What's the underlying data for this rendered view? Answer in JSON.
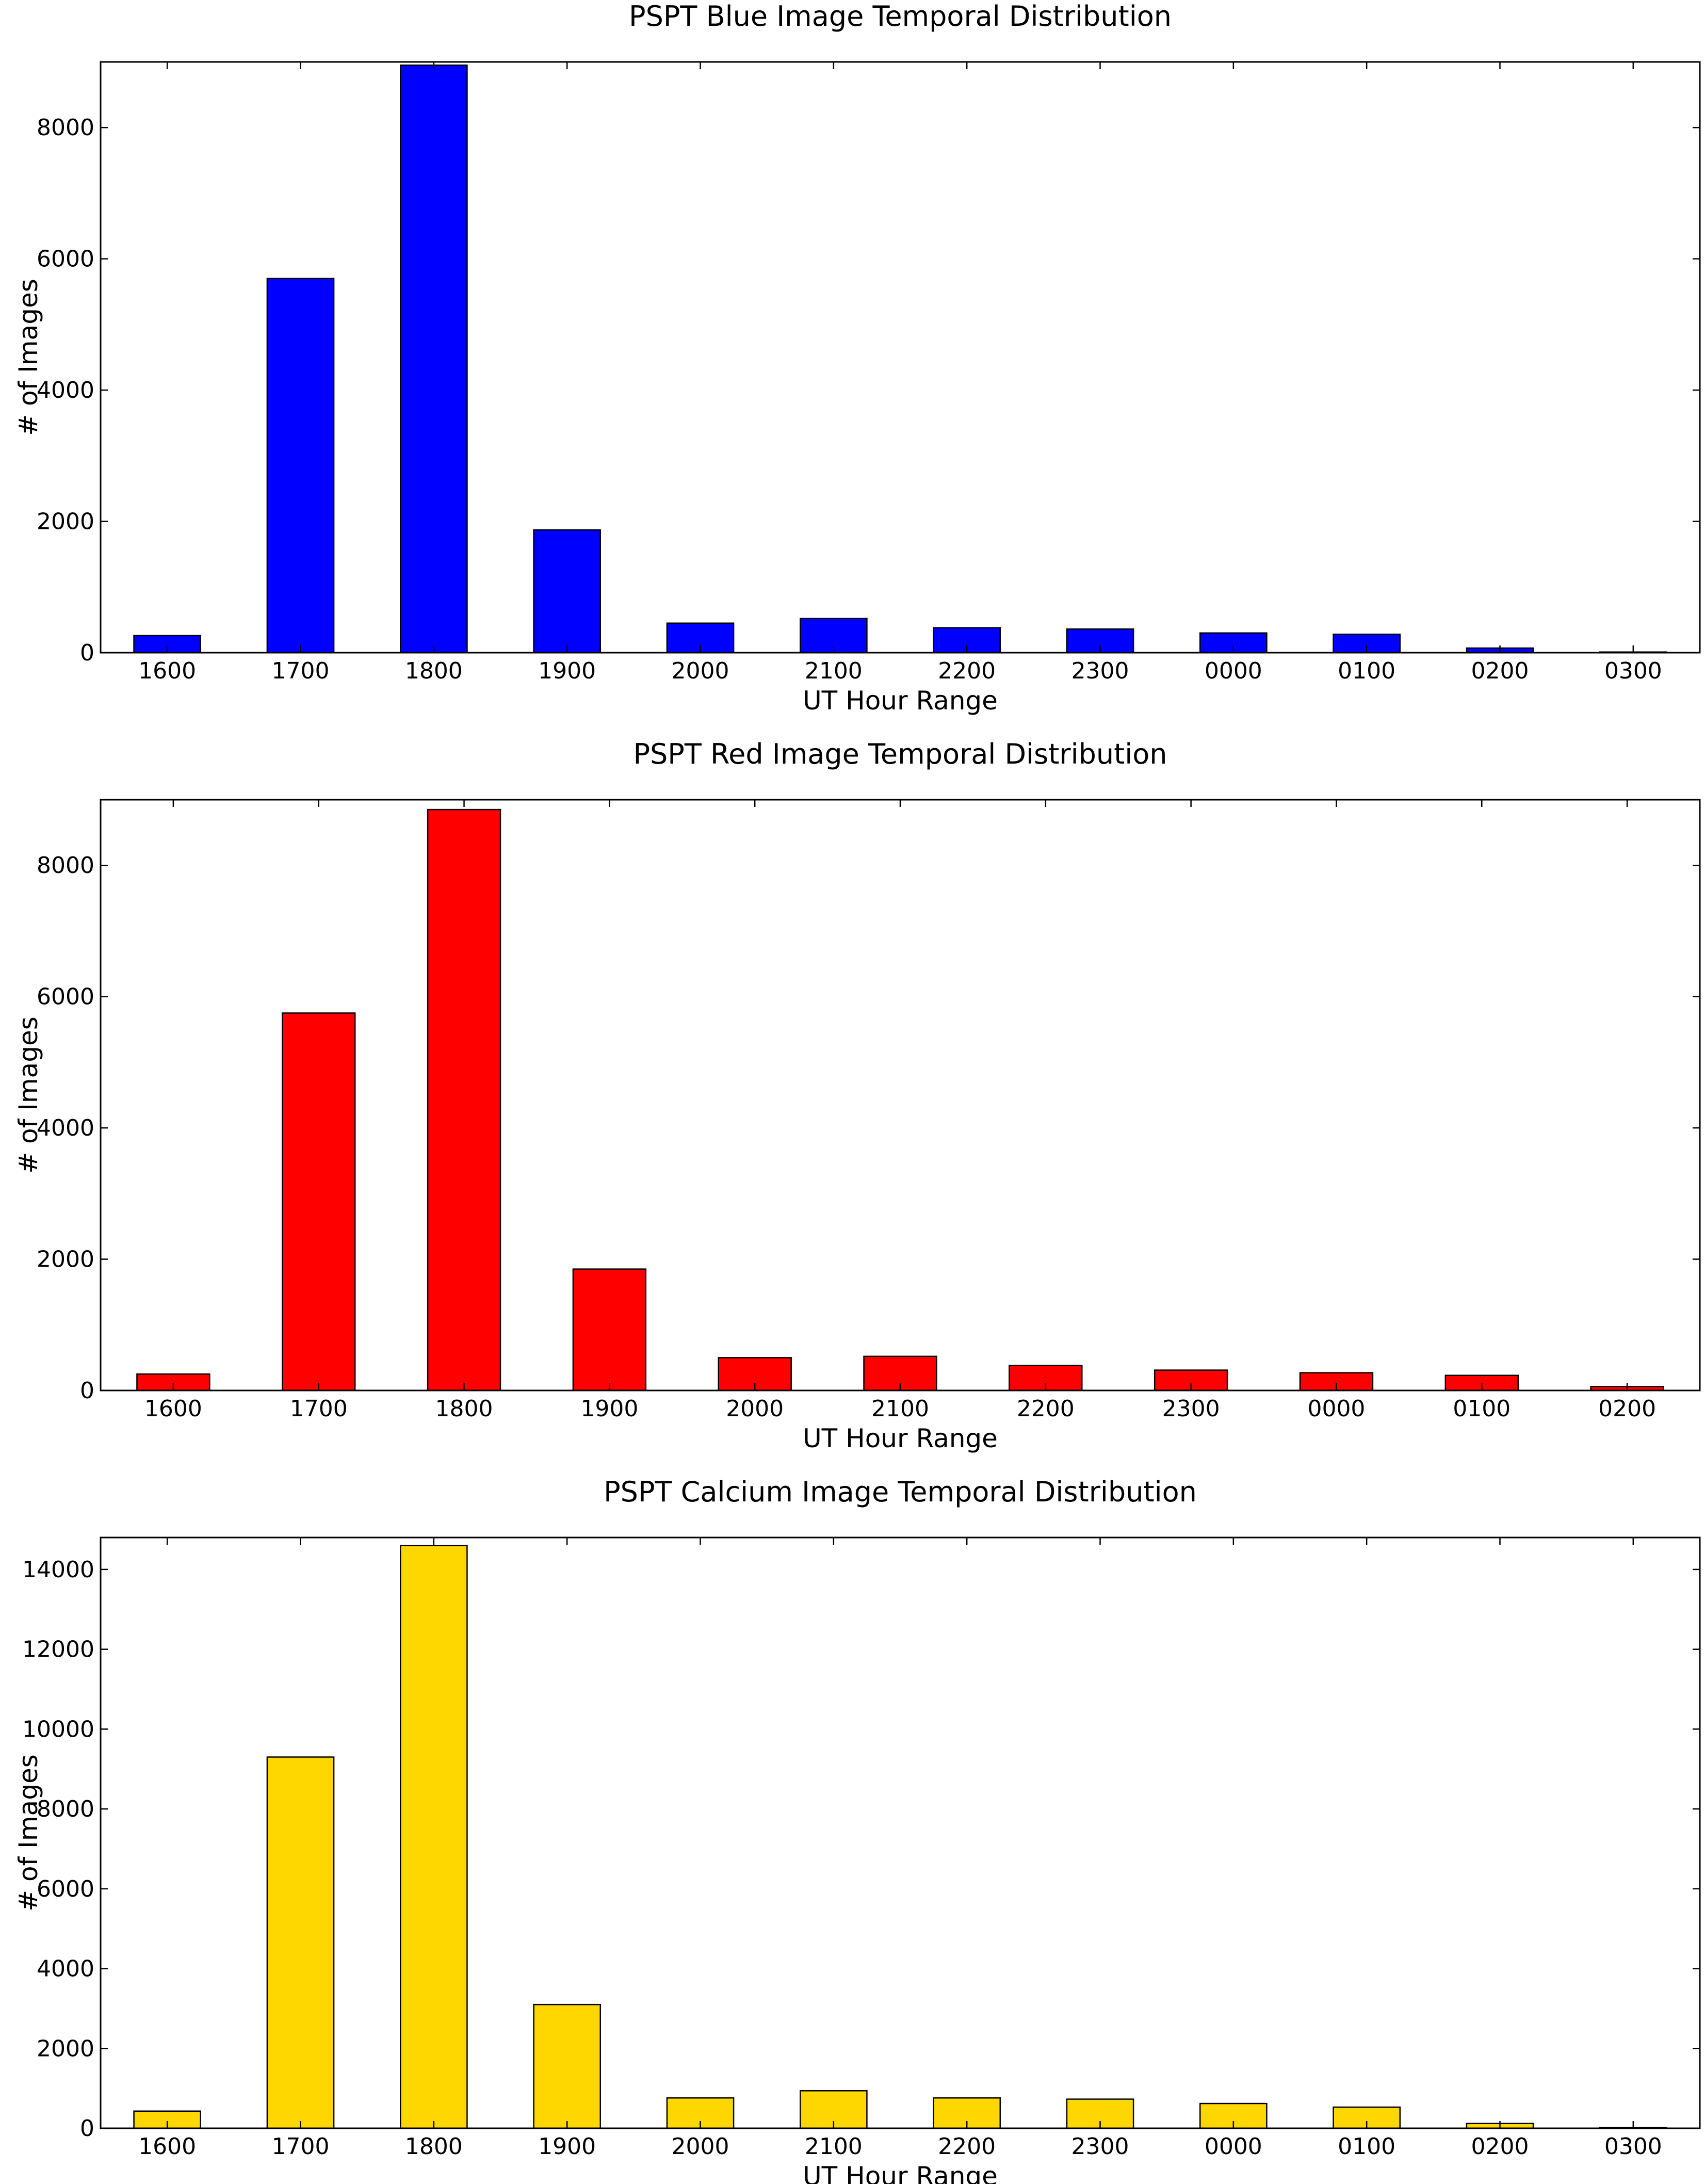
{
  "chart_data": [
    {
      "type": "bar",
      "title": "PSPT Blue Image Temporal Distribution",
      "xlabel": "UT Hour Range",
      "ylabel": "# of Images",
      "categories": [
        "1600",
        "1700",
        "1800",
        "1900",
        "2000",
        "2100",
        "2200",
        "2300",
        "0000",
        "0100",
        "0200",
        "0300"
      ],
      "values": [
        260,
        5700,
        8950,
        1870,
        450,
        520,
        380,
        360,
        300,
        280,
        70,
        10
      ],
      "color": "#0000ff",
      "ylim": [
        0,
        9000
      ],
      "yticks": [
        0,
        2000,
        4000,
        6000,
        8000
      ],
      "grid": false
    },
    {
      "type": "bar",
      "title": "PSPT Red Image Temporal Distribution",
      "xlabel": "UT Hour Range",
      "ylabel": "# of Images",
      "categories": [
        "1600",
        "1700",
        "1800",
        "1900",
        "2000",
        "2100",
        "2200",
        "2300",
        "0000",
        "0100",
        "0200"
      ],
      "values": [
        250,
        5750,
        8850,
        1850,
        500,
        520,
        380,
        310,
        270,
        230,
        60
      ],
      "color": "#ff0000",
      "ylim": [
        0,
        9000
      ],
      "yticks": [
        0,
        2000,
        4000,
        6000,
        8000
      ],
      "grid": false
    },
    {
      "type": "bar",
      "title": "PSPT Calcium Image Temporal Distribution",
      "xlabel": "UT Hour Range",
      "ylabel": "# of Images",
      "categories": [
        "1600",
        "1700",
        "1800",
        "1900",
        "2000",
        "2100",
        "2200",
        "2300",
        "0000",
        "0100",
        "0200",
        "0300"
      ],
      "values": [
        430,
        9300,
        14600,
        3100,
        760,
        940,
        760,
        730,
        620,
        530,
        120,
        20
      ],
      "color": "#ffd700",
      "ylim": [
        0,
        14800
      ],
      "yticks": [
        0,
        2000,
        4000,
        6000,
        8000,
        10000,
        12000,
        14000
      ],
      "grid": false
    }
  ]
}
